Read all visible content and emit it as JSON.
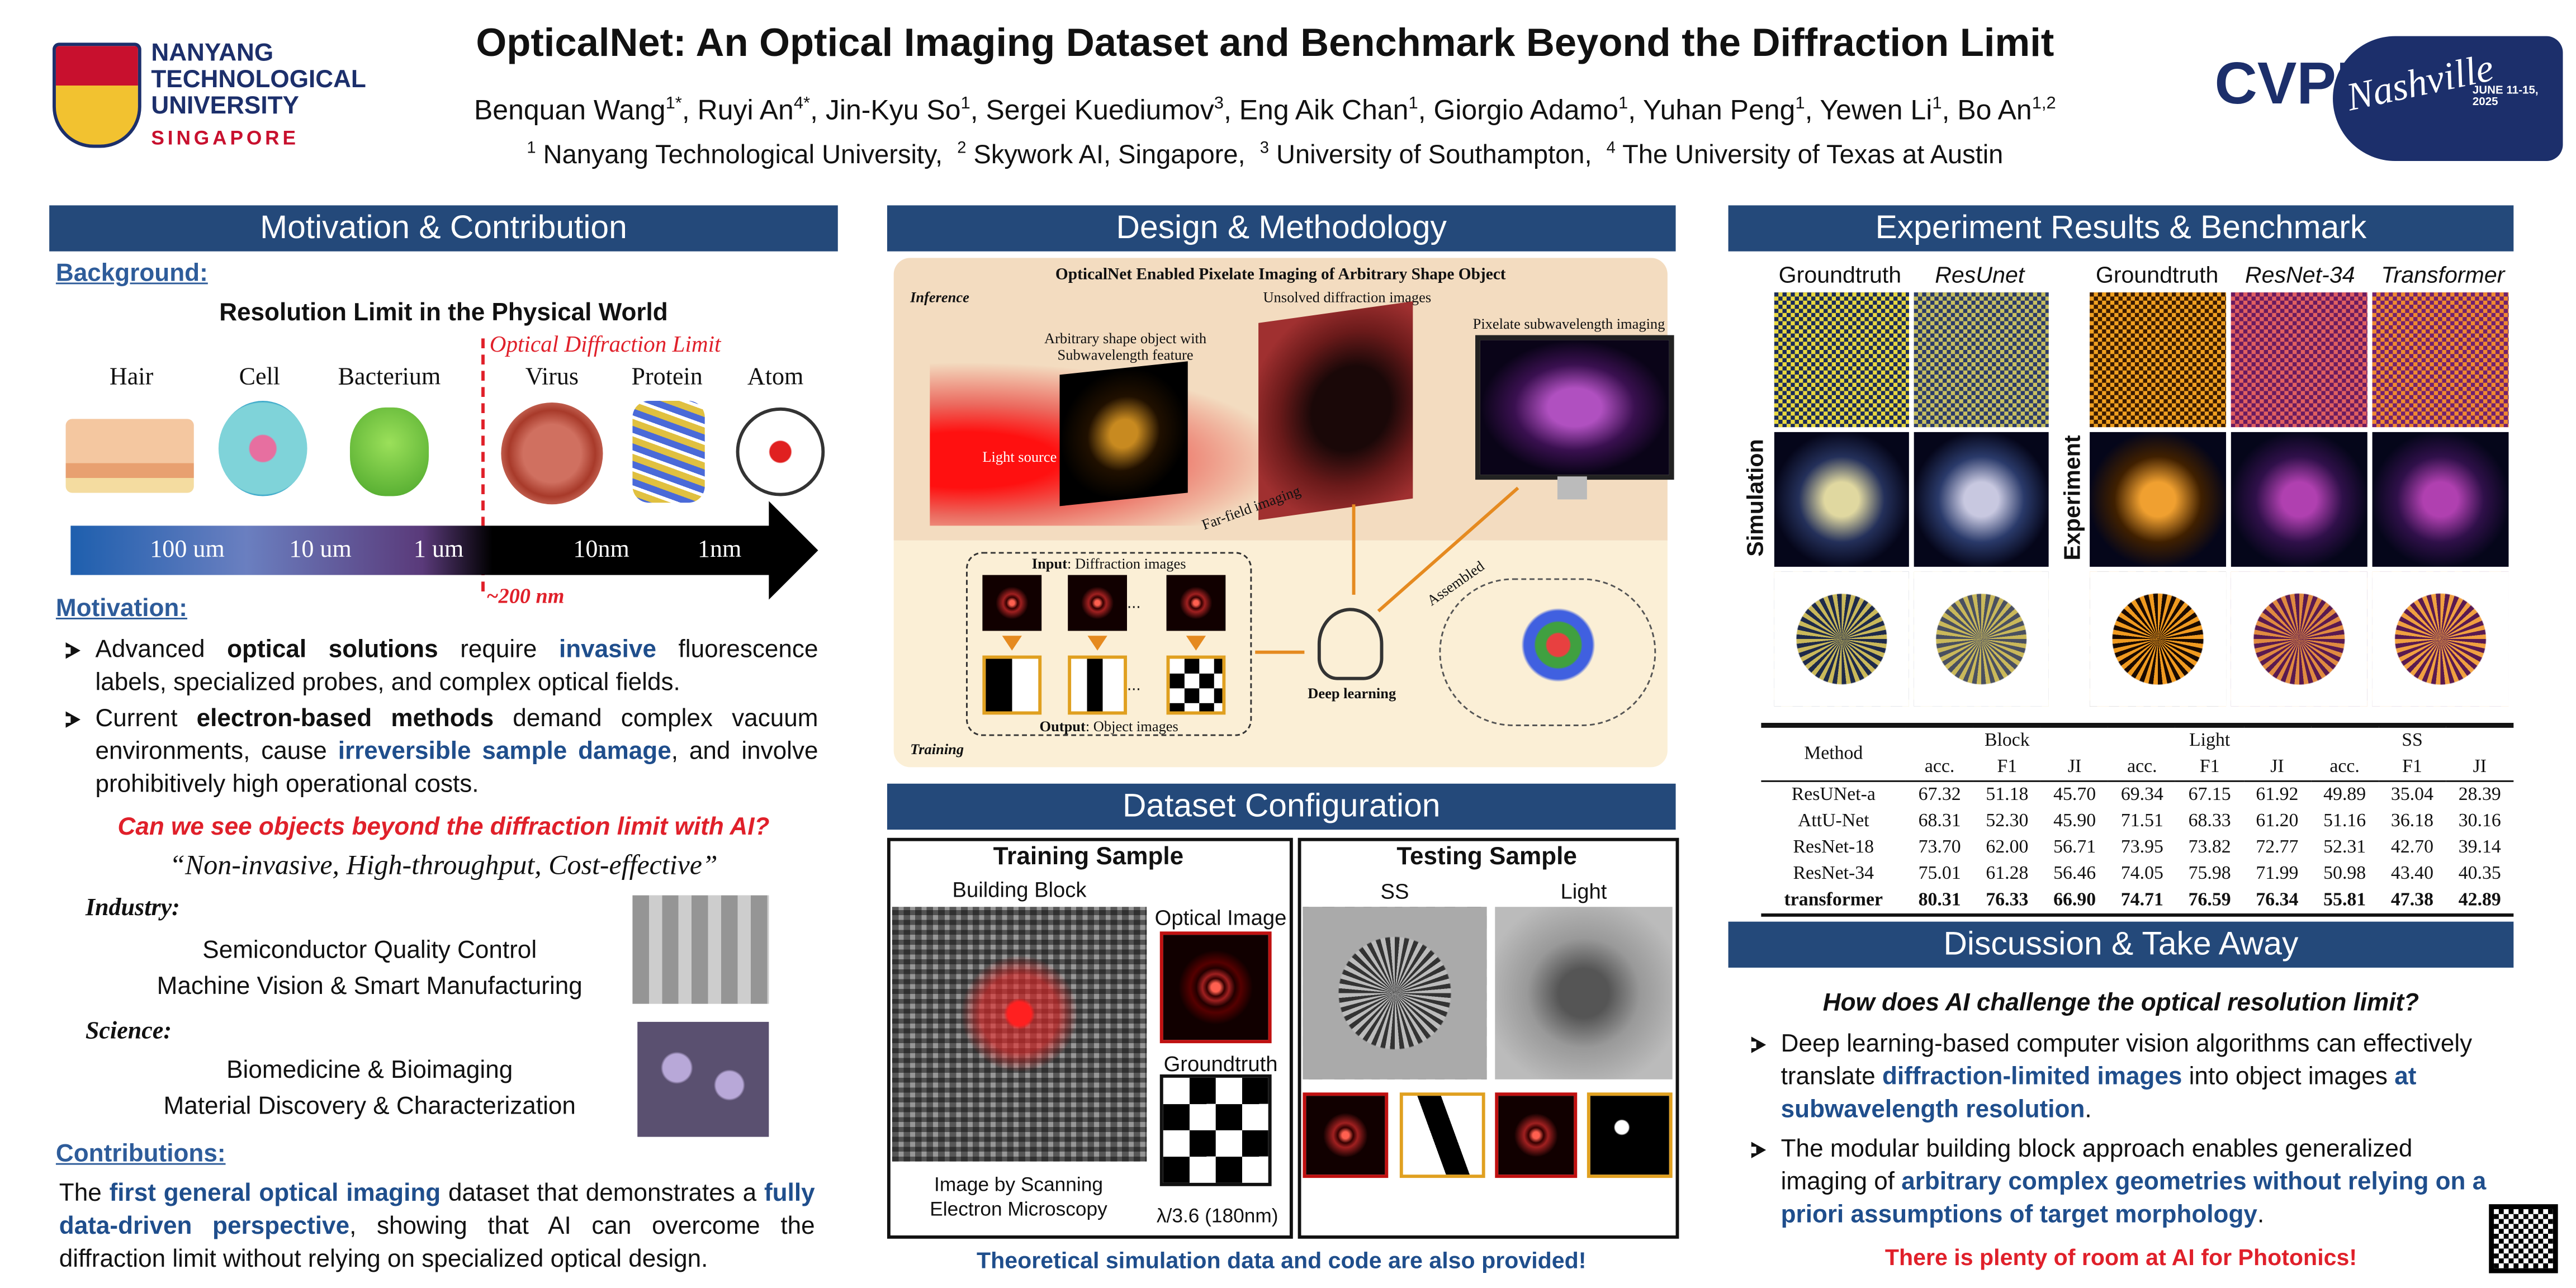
{
  "header": {
    "title": "OpticalNet: An Optical Imaging Dataset and Benchmark Beyond the Diffraction Limit",
    "authors": [
      {
        "t": "Benquan Wang"
      },
      {
        "t": "1*",
        "s": "sup"
      },
      {
        "t": ", Ruyi An"
      },
      {
        "t": "4*",
        "s": "sup"
      },
      {
        "t": ", Jin-Kyu So"
      },
      {
        "t": "1",
        "s": "sup"
      },
      {
        "t": ", Sergei Kuediumov"
      },
      {
        "t": "3",
        "s": "sup"
      },
      {
        "t": ", Eng Aik Chan"
      },
      {
        "t": "1",
        "s": "sup"
      },
      {
        "t": ", Giorgio Adamo"
      },
      {
        "t": "1",
        "s": "sup"
      },
      {
        "t": ", Yuhan Peng"
      },
      {
        "t": "1",
        "s": "sup"
      },
      {
        "t": ", Yewen Li"
      },
      {
        "t": "1",
        "s": "sup"
      },
      {
        "t": ", Bo An"
      },
      {
        "t": "1,2",
        "s": "sup"
      }
    ],
    "affiliations": [
      {
        "t": "1",
        "s": "sup"
      },
      {
        "t": " Nanyang Technological University,  "
      },
      {
        "t": "2",
        "s": "sup"
      },
      {
        "t": " Skywork AI, Singapore,  "
      },
      {
        "t": "3",
        "s": "sup"
      },
      {
        "t": " University of Southampton,  "
      },
      {
        "t": "4",
        "s": "sup"
      },
      {
        "t": " The University of Texas at Austin"
      }
    ],
    "ntu_logo": [
      "NANYANG",
      "TECHNOLOGICAL",
      "UNIVERSITY",
      "SINGAPORE"
    ],
    "cvpr_logo": {
      "name": "CVPR",
      "city": "Nashville",
      "dates": "JUNE 11-15, 2025"
    }
  },
  "motivation": {
    "title": "Motivation & Contribution",
    "background_heading": "Background:",
    "scale_title": "Resolution Limit in the Physical World",
    "limit_label": "Optical Diffraction Limit",
    "objects": [
      "Hair",
      "Cell",
      "Bacterium",
      "Virus",
      "Protein",
      "Atom"
    ],
    "scale_labels": [
      "100 um",
      "10 um",
      "1 um",
      "10nm",
      "1nm"
    ],
    "limit_value": "~200 nm",
    "motivation_heading": "Motivation:",
    "bullets": [
      [
        {
          "t": "Advanced "
        },
        {
          "t": "optical solutions",
          "s": "b"
        },
        {
          "t": " require "
        },
        {
          "t": "invasive",
          "s": "blue"
        },
        {
          "t": " fluorescence labels, specialized probes, and complex optical fields."
        }
      ],
      [
        {
          "t": "Current "
        },
        {
          "t": "electron-based methods",
          "s": "b"
        },
        {
          "t": " demand complex vacuum environments, cause "
        },
        {
          "t": "irreversible sample damage",
          "s": "blue"
        },
        {
          "t": ", and involve prohibitively high operational costs."
        }
      ]
    ],
    "question": "Can we see objects beyond the diffraction limit with AI?",
    "quote": "“Non-invasive, High-throughput, Cost-effective”",
    "industry": {
      "label": "Industry:",
      "items": [
        "Semiconductor Quality Control",
        "Machine Vision  & Smart Manufacturing"
      ]
    },
    "science": {
      "label": "Science:",
      "items": [
        "Biomedicine & Bioimaging",
        "Material Discovery & Characterization"
      ]
    },
    "contributions_heading": "Contributions:",
    "contributions": [
      {
        "t": "The "
      },
      {
        "t": "first general optical imaging",
        "s": "blue"
      },
      {
        "t": " dataset that demonstrates a "
      },
      {
        "t": "fully data-driven perspective",
        "s": "blue"
      },
      {
        "t": ", showing that AI can overcome the diffraction limit without relying on specialized optical design."
      }
    ]
  },
  "design": {
    "title": "Design & Methodology",
    "figure_title": "OpticalNet Enabled Pixelate Imaging of Arbitrary Shape Object",
    "inference": "Inference",
    "training": "Training",
    "object_label": "Arbitrary shape object with Subwavelength feature",
    "diffraction_label": "Unsolved diffraction images",
    "pixelate_label": "Pixelate subwavelength imaging",
    "light_source": "Light source",
    "far_field": "Far-field imaging",
    "input": [
      {
        "t": "Input",
        "s": "b"
      },
      {
        "t": ": Diffraction images"
      }
    ],
    "output": [
      {
        "t": "Output",
        "s": "b"
      },
      {
        "t": ": Object images"
      }
    ],
    "ellipsis": "...",
    "deep_learning": "Deep learning",
    "assembled": "Assembled"
  },
  "dataset": {
    "title": "Dataset Configuration",
    "training": {
      "title": "Training Sample",
      "building_block": "Building Block",
      "optical_image": "Optical Image",
      "groundtruth": "Groundtruth",
      "sem": "Image by Scanning Electron Microscopy",
      "scale": "λ/3.6 (180nm)"
    },
    "testing": {
      "title": "Testing Sample",
      "ss": "SS",
      "light": "Light"
    },
    "note": "Theoretical simulation data and code are also provided!"
  },
  "results": {
    "title": "Experiment Results & Benchmark",
    "simulation_headers": [
      "Groundtruth",
      "ResUnet"
    ],
    "experiment_headers": [
      "Groundtruth",
      "ResNet-34",
      "Transformer"
    ],
    "simulation_label": "Simulation",
    "experiment_label": "Experiment",
    "table": {
      "method": "Method",
      "groups": [
        "Block",
        "Light",
        "SS"
      ],
      "metrics": [
        "acc.",
        "F1",
        "JI"
      ],
      "rows": [
        {
          "method": "ResUNet-a",
          "values": [
            "67.32",
            "51.18",
            "45.70",
            "69.34",
            "67.15",
            "61.92",
            "49.89",
            "35.04",
            "28.39"
          ],
          "bold": false
        },
        {
          "method": "AttU-Net",
          "values": [
            "68.31",
            "52.30",
            "45.90",
            "71.51",
            "68.33",
            "61.20",
            "51.16",
            "36.18",
            "30.16"
          ],
          "bold": false
        },
        {
          "method": "ResNet-18",
          "values": [
            "73.70",
            "62.00",
            "56.71",
            "73.95",
            "73.82",
            "72.77",
            "52.31",
            "42.70",
            "39.14"
          ],
          "bold": false
        },
        {
          "method": "ResNet-34",
          "values": [
            "75.01",
            "61.28",
            "56.46",
            "74.05",
            "75.98",
            "71.99",
            "50.98",
            "43.40",
            "40.35"
          ],
          "bold": false
        },
        {
          "method": "transformer",
          "values": [
            "80.31",
            "76.33",
            "66.90",
            "74.71",
            "76.59",
            "76.34",
            "55.81",
            "47.38",
            "42.89"
          ],
          "bold": true
        }
      ]
    }
  },
  "discussion": {
    "title": "Discussion & Take Away",
    "question": "How does AI challenge the optical resolution limit?",
    "bullets": [
      [
        {
          "t": "Deep learning-based computer vision algorithms can effectively translate "
        },
        {
          "t": "diffraction-limited images",
          "s": "blue"
        },
        {
          "t": " into object images "
        },
        {
          "t": "at subwavelength resolution",
          "s": "blue"
        },
        {
          "t": "."
        }
      ],
      [
        {
          "t": "The modular building block approach enables generalized imaging of "
        },
        {
          "t": "arbitrary complex geometries without relying on a priori assumptions of target morphology",
          "s": "blue"
        },
        {
          "t": "."
        }
      ]
    ],
    "closing": "There is plenty of room at AI for Photonics!"
  }
}
